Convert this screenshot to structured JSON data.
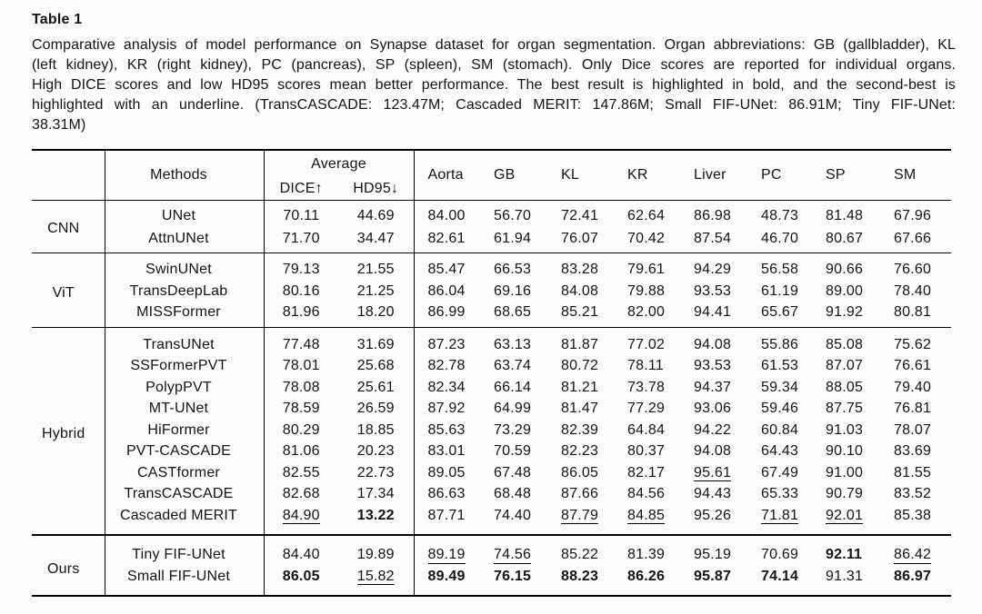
{
  "caption": {
    "label": "Table 1",
    "lines": [
      "Comparative analysis of model performance on Synapse dataset for organ segmentation. Organ abbreviations: GB (gallbladder), KL",
      "(left kidney), KR (right kidney), PC (pancreas), SP (spleen), SM (stomach). Only Dice scores are reported for individual organs.",
      "High DICE scores and low HD95 scores mean better performance. The best result is highlighted in bold, and the second-best is",
      "highlighted with an underline. (TransCASCADE: 123.47M; Cascaded MERIT: 147.86M; Small FIF-UNet: 86.91M; Tiny FIF-UNet:",
      "38.31M)"
    ]
  },
  "table": {
    "header": {
      "methods": "Methods",
      "average": "Average",
      "dice": "DICE↑",
      "hd95": "HD95↓",
      "organs": [
        "Aorta",
        "GB",
        "KL",
        "KR",
        "Liver",
        "PC",
        "SP",
        "SM"
      ]
    },
    "value_columns": [
      "DICE",
      "HD95",
      "Aorta",
      "GB",
      "KL",
      "KR",
      "Liver",
      "PC",
      "SP",
      "SM"
    ],
    "styles_legend": {
      "b": "bold = best result",
      "u": "underline = second-best result"
    },
    "groups": [
      {
        "name": "CNN",
        "rows": [
          {
            "method": "UNet",
            "values": [
              "70.11",
              "44.69",
              "84.00",
              "56.70",
              "72.41",
              "62.64",
              "86.98",
              "48.73",
              "81.48",
              "67.96"
            ],
            "styles": [
              "",
              "",
              "",
              "",
              "",
              "",
              "",
              "",
              "",
              ""
            ]
          },
          {
            "method": "AttnUNet",
            "values": [
              "71.70",
              "34.47",
              "82.61",
              "61.94",
              "76.07",
              "70.42",
              "87.54",
              "46.70",
              "80.67",
              "67.66"
            ],
            "styles": [
              "",
              "",
              "",
              "",
              "",
              "",
              "",
              "",
              "",
              ""
            ]
          }
        ]
      },
      {
        "name": "ViT",
        "rows": [
          {
            "method": "SwinUNet",
            "values": [
              "79.13",
              "21.55",
              "85.47",
              "66.53",
              "83.28",
              "79.61",
              "94.29",
              "56.58",
              "90.66",
              "76.60"
            ],
            "styles": [
              "",
              "",
              "",
              "",
              "",
              "",
              "",
              "",
              "",
              ""
            ]
          },
          {
            "method": "TransDeepLab",
            "values": [
              "80.16",
              "21.25",
              "86.04",
              "69.16",
              "84.08",
              "79.88",
              "93.53",
              "61.19",
              "89.00",
              "78.40"
            ],
            "styles": [
              "",
              "",
              "",
              "",
              "",
              "",
              "",
              "",
              "",
              ""
            ]
          },
          {
            "method": "MISSFormer",
            "values": [
              "81.96",
              "18.20",
              "86.99",
              "68.65",
              "85.21",
              "82.00",
              "94.41",
              "65.67",
              "91.92",
              "80.81"
            ],
            "styles": [
              "",
              "",
              "",
              "",
              "",
              "",
              "",
              "",
              "",
              ""
            ]
          }
        ]
      },
      {
        "name": "Hybrid",
        "rows": [
          {
            "method": "TransUNet",
            "values": [
              "77.48",
              "31.69",
              "87.23",
              "63.13",
              "81.87",
              "77.02",
              "94.08",
              "55.86",
              "85.08",
              "75.62"
            ],
            "styles": [
              "",
              "",
              "",
              "",
              "",
              "",
              "",
              "",
              "",
              ""
            ]
          },
          {
            "method": "SSFormerPVT",
            "values": [
              "78.01",
              "25.68",
              "82.78",
              "63.74",
              "80.72",
              "78.11",
              "93.53",
              "61.53",
              "87.07",
              "76.61"
            ],
            "styles": [
              "",
              "",
              "",
              "",
              "",
              "",
              "",
              "",
              "",
              ""
            ]
          },
          {
            "method": "PolypPVT",
            "values": [
              "78.08",
              "25.61",
              "82.34",
              "66.14",
              "81.21",
              "73.78",
              "94.37",
              "59.34",
              "88.05",
              "79.40"
            ],
            "styles": [
              "",
              "",
              "",
              "",
              "",
              "",
              "",
              "",
              "",
              ""
            ]
          },
          {
            "method": "MT-UNet",
            "values": [
              "78.59",
              "26.59",
              "87.92",
              "64.99",
              "81.47",
              "77.29",
              "93.06",
              "59.46",
              "87.75",
              "76.81"
            ],
            "styles": [
              "",
              "",
              "",
              "",
              "",
              "",
              "",
              "",
              "",
              ""
            ]
          },
          {
            "method": "HiFormer",
            "values": [
              "80.29",
              "18.85",
              "85.63",
              "73.29",
              "82.39",
              "64.84",
              "94.22",
              "60.84",
              "91.03",
              "78.07"
            ],
            "styles": [
              "",
              "",
              "",
              "",
              "",
              "",
              "",
              "",
              "",
              ""
            ]
          },
          {
            "method": "PVT-CASCADE",
            "values": [
              "81.06",
              "20.23",
              "83.01",
              "70.59",
              "82.23",
              "80.37",
              "94.08",
              "64.43",
              "90.10",
              "83.69"
            ],
            "styles": [
              "",
              "",
              "",
              "",
              "",
              "",
              "",
              "",
              "",
              ""
            ]
          },
          {
            "method": "CASTformer",
            "values": [
              "82.55",
              "22.73",
              "89.05",
              "67.48",
              "86.05",
              "82.17",
              "95.61",
              "67.49",
              "91.00",
              "81.55"
            ],
            "styles": [
              "",
              "",
              "",
              "",
              "",
              "",
              "u",
              "",
              "",
              ""
            ]
          },
          {
            "method": "TransCASCADE",
            "values": [
              "82.68",
              "17.34",
              "86.63",
              "68.48",
              "87.66",
              "84.56",
              "94.43",
              "65.33",
              "90.79",
              "83.52"
            ],
            "styles": [
              "",
              "",
              "",
              "",
              "",
              "",
              "",
              "",
              "",
              ""
            ]
          },
          {
            "method": "Cascaded MERIT",
            "values": [
              "84.90",
              "13.22",
              "87.71",
              "74.40",
              "87.79",
              "84.85",
              "95.26",
              "71.81",
              "92.01",
              "85.38"
            ],
            "styles": [
              "u",
              "b",
              "",
              "",
              "u",
              "u",
              "",
              "u",
              "u",
              ""
            ]
          }
        ]
      },
      {
        "name": "Ours",
        "rows": [
          {
            "method": "Tiny FIF-UNet",
            "values": [
              "84.40",
              "19.89",
              "89.19",
              "74.56",
              "85.22",
              "81.39",
              "95.19",
              "70.69",
              "92.11",
              "86.42"
            ],
            "styles": [
              "",
              "",
              "u",
              "u",
              "",
              "",
              "",
              "",
              "b",
              "u"
            ]
          },
          {
            "method": "Small FIF-UNet",
            "values": [
              "86.05",
              "15.82",
              "89.49",
              "76.15",
              "88.23",
              "86.26",
              "95.87",
              "74.14",
              "91.31",
              "86.97"
            ],
            "styles": [
              "b",
              "u",
              "b",
              "b",
              "b",
              "b",
              "b",
              "b",
              "",
              "b"
            ]
          }
        ]
      }
    ]
  }
}
